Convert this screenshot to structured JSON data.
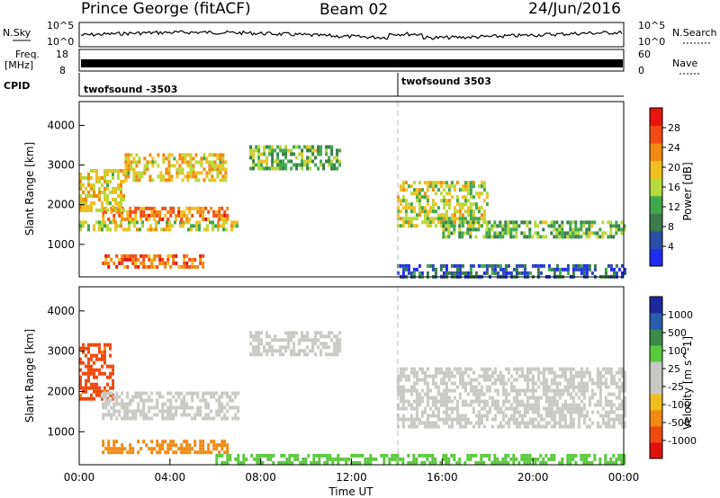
{
  "header": {
    "title": "Prince George (fitACF)",
    "beam": "Beam 02",
    "date": "24/Jun/2016"
  },
  "noise_panel": {
    "left_label": "N.Sky",
    "left_ticks": [
      "10^5",
      "10^0"
    ],
    "right_label": "N.Search",
    "right_ticks": [
      "10^5",
      "10^0"
    ]
  },
  "freq_panel": {
    "left_label_1": "Freq.",
    "left_label_2": "[MHz]",
    "left_ticks": [
      "18",
      "8"
    ],
    "right_ticks": [
      "60",
      "0"
    ],
    "right_label": "Nave"
  },
  "cpid_panel": {
    "label": "CPID",
    "modes": [
      {
        "name": "twofsound -3503",
        "start_hour": 0
      },
      {
        "name": "twofsound 3503",
        "start_hour": 14
      }
    ]
  },
  "colors": {
    "power_scale": [
      "#1e2bf0",
      "#2a4fa8",
      "#3a7d4a",
      "#3fa84c",
      "#b7d93b",
      "#f0c020",
      "#f08a10",
      "#f24a14",
      "#e8140e"
    ],
    "velocity_scale": [
      "#e0120e",
      "#f04a10",
      "#f08a12",
      "#f0be1c",
      "#c8c8c4",
      "#c8c8c4",
      "#5ac83c",
      "#3a8a4a",
      "#2a5cae",
      "#1c2a9c"
    ]
  },
  "chart_data": [
    {
      "type": "heatmap",
      "title": "",
      "xlabel": "",
      "ylabel": "Slant Range [km]",
      "xlim": [
        0,
        24
      ],
      "ylim": [
        180,
        4600
      ],
      "x_ticks": [
        "00:00",
        "04:00",
        "08:00",
        "12:00",
        "16:00",
        "20:00",
        "00:00"
      ],
      "y_ticks": [
        1000,
        2000,
        3000,
        4000
      ],
      "colorbar": {
        "label": "Power [dB]",
        "ticks": [
          "4",
          "8",
          "12",
          "16",
          "20",
          "24",
          "28"
        ],
        "range": [
          0,
          30
        ]
      },
      "regions": [
        {
          "t0": 1.0,
          "t1": 5.5,
          "r0": 450,
          "r1": 750,
          "value": 24
        },
        {
          "t0": 0.0,
          "t1": 7.0,
          "r0": 1350,
          "r1": 1600,
          "value": 16
        },
        {
          "t0": 1.0,
          "t1": 6.5,
          "r0": 1600,
          "r1": 1950,
          "value": 22
        },
        {
          "t0": 0.0,
          "t1": 2.0,
          "r0": 1900,
          "r1": 2900,
          "value": 18
        },
        {
          "t0": 2.0,
          "t1": 6.5,
          "r0": 2600,
          "r1": 3300,
          "value": 18
        },
        {
          "t0": 7.5,
          "t1": 11.5,
          "r0": 2900,
          "r1": 3500,
          "value": 12
        },
        {
          "t0": 14.0,
          "t1": 18.0,
          "r0": 1500,
          "r1": 2600,
          "value": 16
        },
        {
          "t0": 16.0,
          "t1": 24.0,
          "r0": 1200,
          "r1": 1600,
          "value": 12
        },
        {
          "t0": 14.0,
          "t1": 24.0,
          "r0": 200,
          "r1": 500,
          "value": 6
        }
      ]
    },
    {
      "type": "heatmap",
      "title": "",
      "xlabel": "Time UT",
      "ylabel": "Slant Range [km]",
      "xlim": [
        0,
        24
      ],
      "ylim": [
        180,
        4600
      ],
      "x_ticks": [
        "00:00",
        "04:00",
        "08:00",
        "12:00",
        "16:00",
        "20:00",
        "00:00"
      ],
      "y_ticks": [
        1000,
        2000,
        3000,
        4000
      ],
      "colorbar": {
        "label": "Velocity [m s^-1]",
        "ticks": [
          "-1000",
          "-500",
          "-100",
          "-25",
          "25",
          "100",
          "500",
          "1000"
        ]
      },
      "regions": [
        {
          "t0": 1.0,
          "t1": 6.5,
          "r0": 450,
          "r1": 800,
          "value": -300
        },
        {
          "t0": 0.0,
          "t1": 1.5,
          "r0": 1800,
          "r1": 3200,
          "value": -700
        },
        {
          "t0": 1.0,
          "t1": 7.0,
          "r0": 1300,
          "r1": 2000,
          "value": 0
        },
        {
          "t0": 7.5,
          "t1": 11.5,
          "r0": 2900,
          "r1": 3500,
          "value": 0
        },
        {
          "t0": 14.0,
          "t1": 24.0,
          "r0": 1100,
          "r1": 2600,
          "value": 0
        },
        {
          "t0": 6.0,
          "t1": 24.0,
          "r0": 200,
          "r1": 450,
          "value": 60
        }
      ]
    }
  ]
}
